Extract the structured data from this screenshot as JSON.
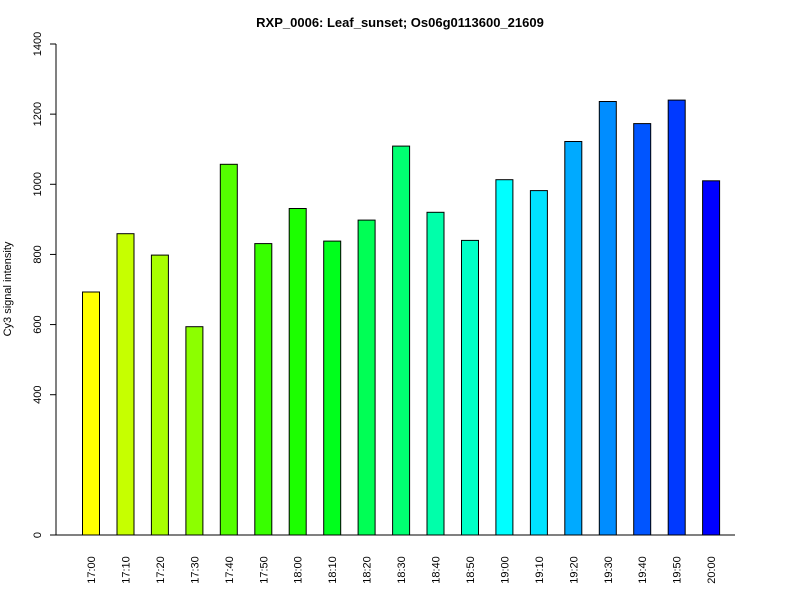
{
  "chart_data": {
    "type": "bar",
    "title": "RXP_0006: Leaf_sunset; Os06g0113600_21609",
    "xlabel": "",
    "ylabel": "Cy3 signal intensity",
    "ylim": [
      0,
      1400
    ],
    "y_ticks": [
      0,
      400,
      600,
      800,
      1000,
      1200,
      1400
    ],
    "grid": false,
    "categories": [
      "17:00",
      "17:10",
      "17:20",
      "17:30",
      "17:40",
      "17:50",
      "18:00",
      "18:10",
      "18:20",
      "18:30",
      "18:40",
      "18:50",
      "19:00",
      "19:10",
      "19:20",
      "19:30",
      "19:40",
      "19:50",
      "20:00"
    ],
    "values": [
      693,
      859,
      798,
      594,
      1057,
      831,
      931,
      838,
      898,
      1109,
      920,
      840,
      1013,
      982,
      1122,
      1236,
      1173,
      1240,
      1010
    ],
    "colors": [
      "#ffff00",
      "#c6ff00",
      "#a8ff00",
      "#8cff00",
      "#54ff00",
      "#38ff00",
      "#1cff00",
      "#00ff1c",
      "#00ff55",
      "#00ff71",
      "#00ffaa",
      "#00ffc6",
      "#00ffff",
      "#00e2ff",
      "#00aaff",
      "#008dff",
      "#0055ff",
      "#0039ff",
      "#0000ff"
    ]
  }
}
